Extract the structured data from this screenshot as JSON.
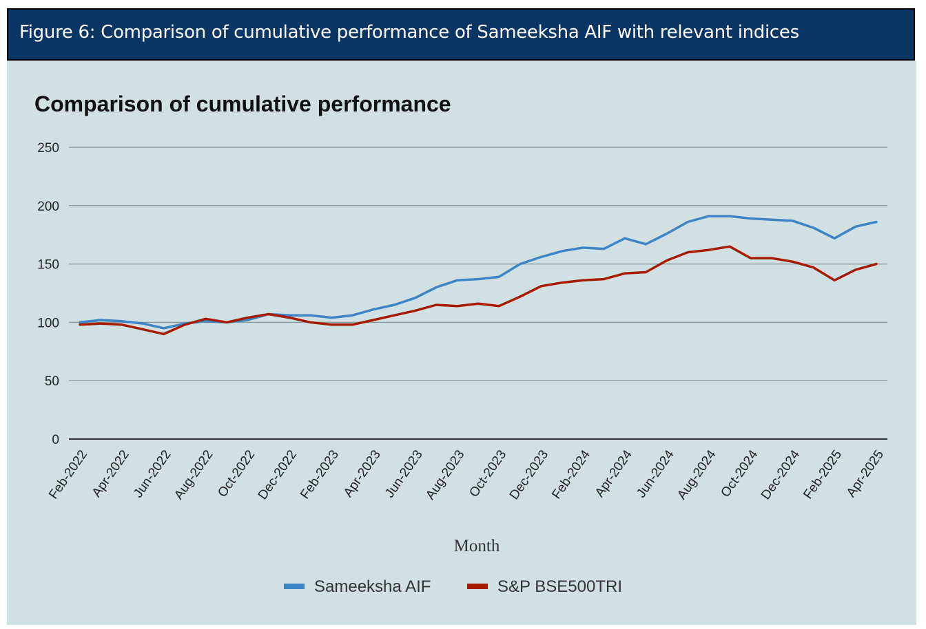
{
  "header": {
    "figure_title": "Figure 6: Comparison of cumulative performance of Sameeksha AIF with relevant indices"
  },
  "chart_data": {
    "type": "line",
    "title": "Comparison of cumulative performance",
    "xlabel": "Month",
    "ylabel": "",
    "ylim": [
      0,
      250
    ],
    "yticks": [
      0,
      50,
      100,
      150,
      200,
      250
    ],
    "grid": true,
    "legend_position": "bottom",
    "background": "#d0e0e3",
    "x": [
      "Feb-2022",
      "Mar-2022",
      "Apr-2022",
      "May-2022",
      "Jun-2022",
      "Jul-2022",
      "Aug-2022",
      "Sep-2022",
      "Oct-2022",
      "Nov-2022",
      "Dec-2022",
      "Jan-2023",
      "Feb-2023",
      "Mar-2023",
      "Apr-2023",
      "May-2023",
      "Jun-2023",
      "Jul-2023",
      "Aug-2023",
      "Sep-2023",
      "Oct-2023",
      "Nov-2023",
      "Dec-2023",
      "Jan-2024",
      "Feb-2024",
      "Mar-2024",
      "Apr-2024",
      "May-2024",
      "Jun-2024",
      "Jul-2024",
      "Aug-2024",
      "Sep-2024",
      "Oct-2024",
      "Nov-2024",
      "Dec-2024",
      "Jan-2025",
      "Feb-2025",
      "Mar-2025",
      "Apr-2025"
    ],
    "x_tick_labels": [
      "Feb-2022",
      "Apr-2022",
      "Jun-2022",
      "Aug-2022",
      "Oct-2022",
      "Dec-2022",
      "Feb-2023",
      "Apr-2023",
      "Jun-2023",
      "Aug-2023",
      "Oct-2023",
      "Dec-2023",
      "Feb-2024",
      "Apr-2024",
      "Jun-2024",
      "Aug-2024",
      "Oct-2024",
      "Dec-2024",
      "Feb-2025",
      "Apr-2025"
    ],
    "series": [
      {
        "name": "Sameeksha AIF",
        "color": "#3d85c6",
        "values": [
          100,
          102,
          101,
          99,
          95,
          99,
          101,
          100,
          102,
          107,
          106,
          106,
          104,
          106,
          111,
          115,
          121,
          130,
          136,
          137,
          139,
          150,
          156,
          161,
          164,
          163,
          172,
          167,
          176,
          186,
          191,
          191,
          189,
          188,
          187,
          181,
          172,
          182,
          186
        ]
      },
      {
        "name": "S&P BSE500TRI",
        "color": "#a61c00",
        "values": [
          98,
          99,
          98,
          94,
          90,
          98,
          103,
          100,
          104,
          107,
          104,
          100,
          98,
          98,
          102,
          106,
          110,
          115,
          114,
          116,
          114,
          122,
          131,
          134,
          136,
          137,
          142,
          143,
          153,
          160,
          162,
          165,
          155,
          155,
          152,
          147,
          136,
          145,
          150
        ]
      }
    ]
  }
}
